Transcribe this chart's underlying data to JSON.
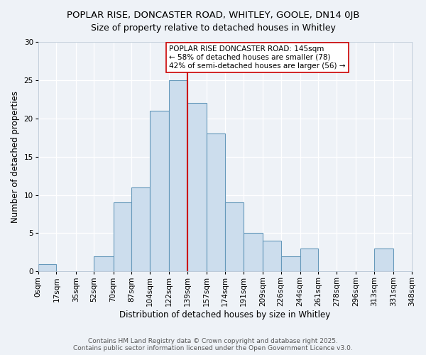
{
  "title": "POPLAR RISE, DONCASTER ROAD, WHITLEY, GOOLE, DN14 0JB",
  "subtitle": "Size of property relative to detached houses in Whitley",
  "xlabel": "Distribution of detached houses by size in Whitley",
  "ylabel": "Number of detached properties",
  "bar_color": "#ccdded",
  "bar_edge_color": "#6699bb",
  "background_color": "#eef2f7",
  "grid_color": "#ffffff",
  "bin_edges": [
    0,
    17,
    35,
    52,
    70,
    87,
    104,
    122,
    139,
    157,
    174,
    191,
    209,
    226,
    244,
    261,
    278,
    296,
    313,
    331,
    348
  ],
  "bin_labels": [
    "0sqm",
    "17sqm",
    "35sqm",
    "52sqm",
    "70sqm",
    "87sqm",
    "104sqm",
    "122sqm",
    "139sqm",
    "157sqm",
    "174sqm",
    "191sqm",
    "209sqm",
    "226sqm",
    "244sqm",
    "261sqm",
    "278sqm",
    "296sqm",
    "313sqm",
    "331sqm",
    "348sqm"
  ],
  "counts": [
    1,
    0,
    0,
    2,
    9,
    11,
    21,
    25,
    22,
    18,
    9,
    5,
    4,
    2,
    3,
    0,
    0,
    0,
    3,
    0
  ],
  "vline_x": 139,
  "vline_color": "#cc0000",
  "annotation_text": "POPLAR RISE DONCASTER ROAD: 145sqm\n← 58% of detached houses are smaller (78)\n42% of semi-detached houses are larger (56) →",
  "annotation_box_color": "#ffffff",
  "annotation_box_edge": "#cc0000",
  "ylim": [
    0,
    30
  ],
  "yticks": [
    0,
    5,
    10,
    15,
    20,
    25,
    30
  ],
  "footer_text": "Contains HM Land Registry data © Crown copyright and database right 2025.\nContains public sector information licensed under the Open Government Licence v3.0.",
  "title_fontsize": 9.5,
  "subtitle_fontsize": 9,
  "axis_label_fontsize": 8.5,
  "tick_fontsize": 7.5,
  "annotation_fontsize": 7.5,
  "footer_fontsize": 6.5
}
